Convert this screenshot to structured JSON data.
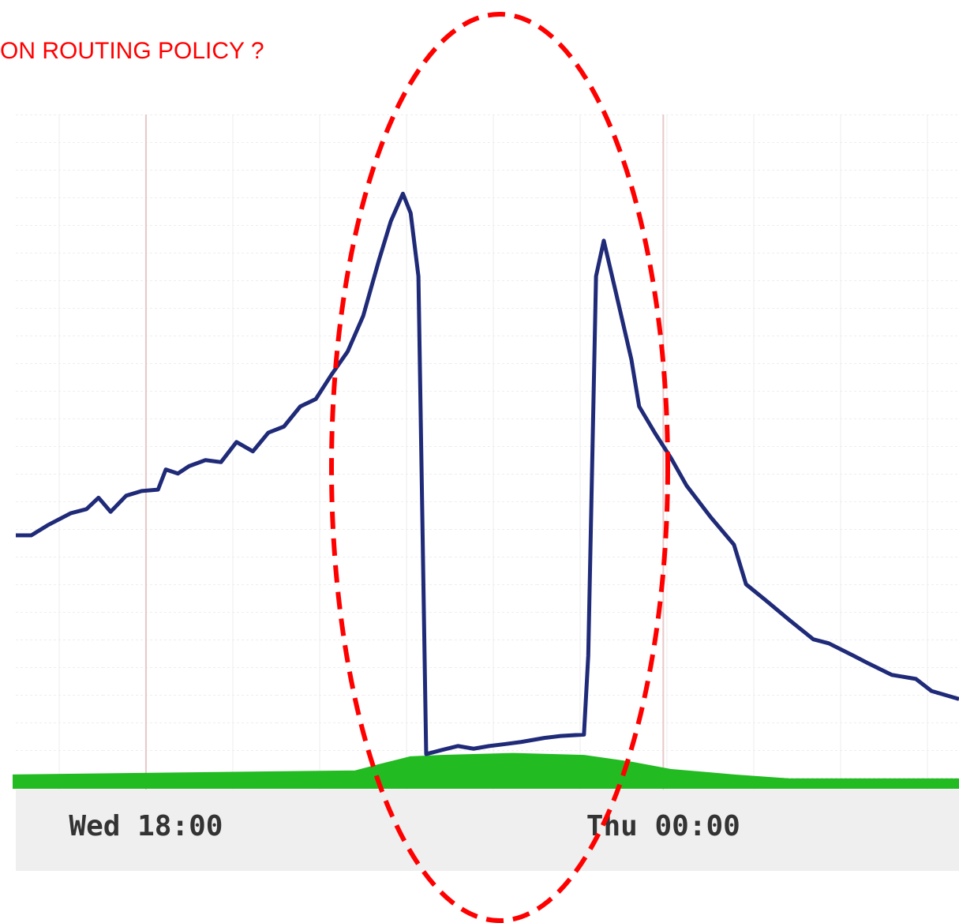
{
  "chart_data": {
    "type": "line",
    "title": "ON ROUTING POLICY ?",
    "xlim": [
      16.49,
      27.43
    ],
    "ylim": [
      0,
      100
    ],
    "xticks": [
      {
        "value": 18,
        "label": "Wed 18:00"
      },
      {
        "value": 24,
        "label": "Thu 00:00"
      }
    ],
    "grid": true,
    "series": [
      {
        "color": "#1f2a78",
        "kind": "line",
        "x": [
          16.49,
          16.67,
          16.86,
          17.13,
          17.31,
          17.45,
          17.59,
          17.77,
          17.95,
          18.14,
          18.23,
          18.37,
          18.5,
          18.69,
          18.87,
          19.05,
          19.24,
          19.42,
          19.6,
          19.79,
          19.97,
          20.15,
          20.34,
          20.52,
          20.7,
          20.84,
          20.98,
          21.07,
          21.16,
          21.25,
          21.43,
          21.62,
          21.8,
          21.98,
          22.17,
          22.35,
          22.62,
          22.81,
          23.08,
          23.13,
          23.22,
          23.31,
          23.45,
          23.63,
          23.72,
          23.91,
          24.09,
          24.27,
          24.55,
          24.82,
          24.96,
          25.19,
          25.46,
          25.74,
          25.92,
          26.2,
          26.38,
          26.65,
          26.93,
          27.11,
          27.43
        ],
        "values": [
          37.3,
          37.3,
          38.8,
          40.6,
          41.2,
          42.9,
          40.8,
          43.2,
          43.9,
          44.1,
          47.1,
          46.5,
          47.6,
          48.5,
          48.2,
          51.2,
          49.8,
          52.6,
          53.5,
          56.5,
          57.6,
          61.2,
          64.7,
          70.0,
          78.2,
          84.1,
          88.2,
          85.3,
          75.9,
          4.7,
          5.3,
          5.9,
          5.5,
          5.9,
          6.2,
          6.5,
          7.1,
          7.4,
          7.6,
          19.4,
          75.9,
          81.2,
          73.5,
          63.5,
          56.5,
          52.4,
          48.8,
          44.7,
          40.0,
          35.9,
          30.0,
          27.6,
          24.7,
          21.8,
          21.2,
          19.4,
          18.2,
          16.5,
          15.9,
          14.1,
          12.9
        ]
      },
      {
        "color": "#22bb22",
        "kind": "area",
        "x": [
          16.49,
          20.43,
          20.7,
          21.07,
          21.43,
          22.26,
          23.08,
          23.63,
          24.09,
          24.82,
          25.46,
          27.43
        ],
        "values": [
          1.2,
          1.8,
          2.7,
          3.9,
          4.1,
          4.4,
          4.1,
          3.1,
          2.0,
          1.2,
          0.6,
          0.6
        ]
      }
    ]
  }
}
